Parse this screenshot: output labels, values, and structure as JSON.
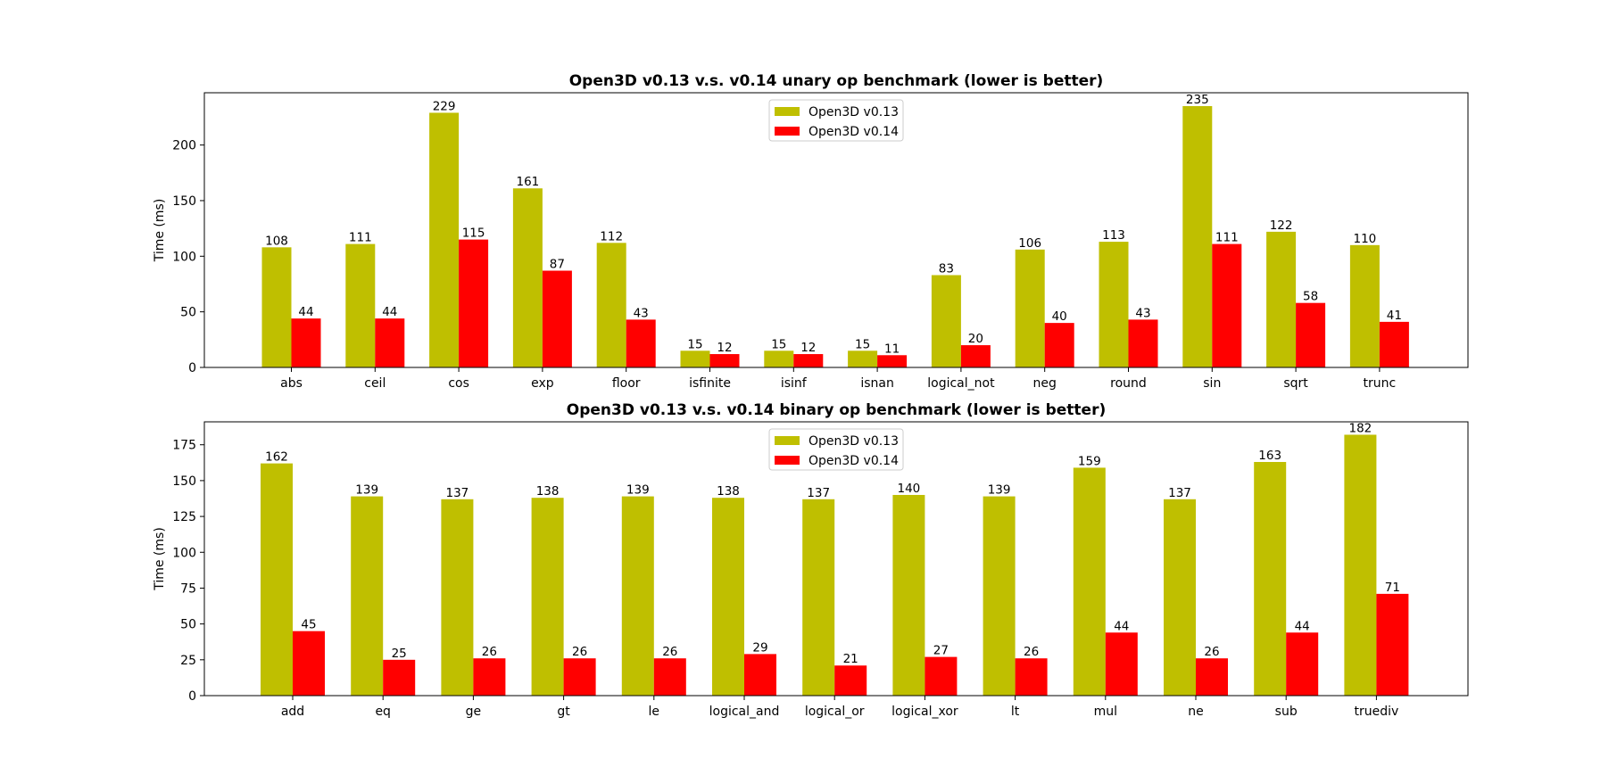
{
  "colors": {
    "v013": "#bfbf00",
    "v014": "#ff0000"
  },
  "chart_data": [
    {
      "type": "bar",
      "title": "Open3D v0.13 v.s. v0.14 unary op benchmark (lower is better)",
      "xlabel": "",
      "ylabel": "Time (ms)",
      "ylim": [
        0,
        247
      ],
      "yticks": [
        0,
        50,
        100,
        150,
        200
      ],
      "legend_position": "top-center",
      "grid": false,
      "categories": [
        "abs",
        "ceil",
        "cos",
        "exp",
        "floor",
        "isfinite",
        "isinf",
        "isnan",
        "logical_not",
        "neg",
        "round",
        "sin",
        "sqrt",
        "trunc"
      ],
      "series": [
        {
          "name": "Open3D v0.13",
          "color_key": "v013",
          "values": [
            108,
            111,
            229,
            161,
            112,
            15,
            15,
            15,
            83,
            106,
            113,
            235,
            122,
            110
          ]
        },
        {
          "name": "Open3D v0.14",
          "color_key": "v014",
          "values": [
            44,
            44,
            115,
            87,
            43,
            12,
            12,
            11,
            20,
            40,
            43,
            111,
            58,
            41
          ]
        }
      ]
    },
    {
      "type": "bar",
      "title": "Open3D v0.13 v.s. v0.14 binary op benchmark (lower is better)",
      "xlabel": "",
      "ylabel": "Time (ms)",
      "ylim": [
        0,
        191
      ],
      "yticks": [
        0,
        25,
        50,
        75,
        100,
        125,
        150,
        175
      ],
      "legend_position": "top-center",
      "grid": false,
      "categories": [
        "add",
        "eq",
        "ge",
        "gt",
        "le",
        "logical_and",
        "logical_or",
        "logical_xor",
        "lt",
        "mul",
        "ne",
        "sub",
        "truediv"
      ],
      "series": [
        {
          "name": "Open3D v0.13",
          "color_key": "v013",
          "values": [
            162,
            139,
            137,
            138,
            139,
            138,
            137,
            140,
            139,
            159,
            137,
            163,
            182
          ]
        },
        {
          "name": "Open3D v0.14",
          "color_key": "v014",
          "values": [
            45,
            25,
            26,
            26,
            26,
            29,
            21,
            27,
            26,
            44,
            26,
            44,
            71
          ]
        }
      ]
    }
  ]
}
